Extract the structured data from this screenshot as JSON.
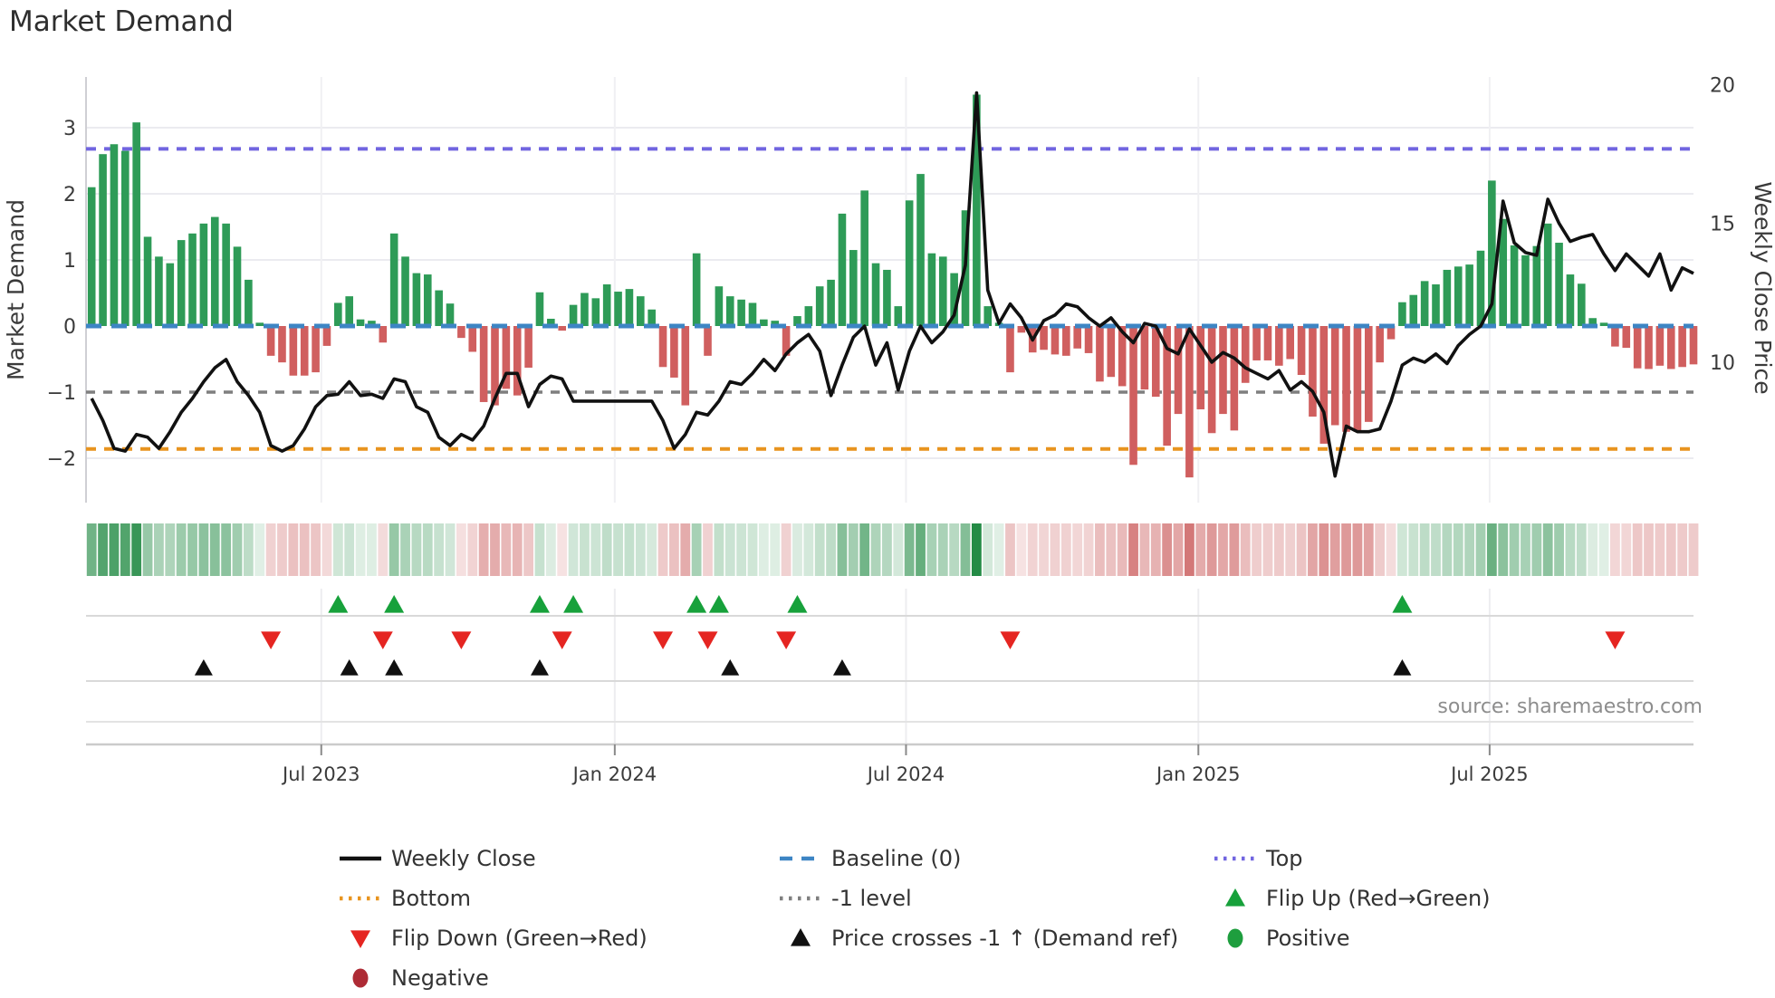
{
  "header": {
    "title": "Market Demand"
  },
  "source_note": "source: sharemaestro.com",
  "colors": {
    "bar_positive": "#2e9b57",
    "bar_negative": "#d05f5f",
    "price_line": "#111111",
    "baseline": "#3d85c4",
    "top_level": "#7165e0",
    "bottom_level": "#e8941f",
    "minus_one_level": "#7f7f7f",
    "flip_up": "#17a13b",
    "flip_down": "#e52521",
    "positive_dot": "#1e9e3e",
    "negative_dot": "#ae2b35",
    "heat_pos_rgb": "35,139,69",
    "heat_neg_rgb": "193,63,63",
    "grid": "#ebebf0",
    "panel_line": "#d9d9d9",
    "tick_text": "#3b3b3b"
  },
  "legend": [
    {
      "id": "weekly-close",
      "label": "Weekly Close",
      "swatch": "solid",
      "color": "#111111",
      "col": 0,
      "row": 0
    },
    {
      "id": "baseline",
      "label": "Baseline (0)",
      "swatch": "dash",
      "color": "#3d85c4",
      "col": 1,
      "row": 0
    },
    {
      "id": "top",
      "label": "Top",
      "swatch": "dot",
      "color": "#7165e0",
      "col": 2,
      "row": 0
    },
    {
      "id": "bottom",
      "label": "Bottom",
      "swatch": "dot",
      "color": "#e8941f",
      "col": 0,
      "row": 1
    },
    {
      "id": "minus1",
      "label": "-1 level",
      "swatch": "dot",
      "color": "#7f7f7f",
      "col": 1,
      "row": 1
    },
    {
      "id": "flip-up",
      "label": "Flip Up (Red→Green)",
      "swatch": "tri-up",
      "color": "#17a13b",
      "col": 2,
      "row": 1
    },
    {
      "id": "flip-down",
      "label": "Flip Down (Green→Red)",
      "swatch": "tri-down",
      "color": "#e52521",
      "col": 0,
      "row": 2
    },
    {
      "id": "price-cross",
      "label": "Price crosses -1 ↑ (Demand ref)",
      "swatch": "tri-up",
      "color": "#111111",
      "col": 1,
      "row": 2
    },
    {
      "id": "positive",
      "label": "Positive",
      "swatch": "circle",
      "color": "#1e9e3e",
      "col": 2,
      "row": 2
    },
    {
      "id": "negative",
      "label": "Negative",
      "swatch": "circle",
      "color": "#ae2b35",
      "col": 0,
      "row": 3
    }
  ],
  "chart_data": {
    "type": "combo",
    "title": "Market Demand",
    "x_tick_labels": [
      "Jul 2023",
      "Jan 2024",
      "Jul 2024",
      "Jan 2025",
      "Jul 2025"
    ],
    "x_tick_weeks": [
      20.5,
      46.7,
      72.7,
      98.8,
      124.8
    ],
    "weeks": 144,
    "y_left": {
      "label": "Market Demand",
      "ticks": [
        3,
        2,
        1,
        0,
        -1,
        -2
      ],
      "lim": [
        -2.67,
        3.77
      ]
    },
    "y_right": {
      "label": "Weekly Close Price",
      "ticks": [
        20,
        15,
        10
      ],
      "lim": [
        4.95,
        20.35
      ]
    },
    "levels": {
      "baseline": 0,
      "top": 2.68,
      "bottom": -1.86,
      "minus_one": -1
    },
    "series": [
      {
        "name": "Market Demand",
        "type": "bar",
        "values": [
          2.1,
          2.6,
          2.75,
          2.65,
          3.08,
          1.35,
          1.05,
          0.95,
          1.3,
          1.4,
          1.55,
          1.65,
          1.55,
          1.2,
          0.7,
          0.05,
          -0.45,
          -0.55,
          -0.75,
          -0.75,
          -0.7,
          -0.3,
          0.35,
          0.45,
          0.1,
          0.08,
          -0.25,
          1.4,
          1.05,
          0.8,
          0.78,
          0.54,
          0.34,
          -0.18,
          -0.39,
          -1.15,
          -1.2,
          -0.95,
          -1.05,
          -0.63,
          0.51,
          0.11,
          -0.07,
          0.32,
          0.5,
          0.42,
          0.63,
          0.52,
          0.56,
          0.45,
          0.25,
          -0.62,
          -0.78,
          -1.2,
          1.1,
          -0.45,
          0.6,
          0.45,
          0.4,
          0.35,
          0.1,
          0.08,
          -0.45,
          0.15,
          0.3,
          0.6,
          0.7,
          1.7,
          1.15,
          2.05,
          0.95,
          0.85,
          0.3,
          1.9,
          2.3,
          1.1,
          1.05,
          0.8,
          1.75,
          3.5,
          0.3,
          0.05,
          -0.7,
          -0.1,
          -0.4,
          -0.36,
          -0.43,
          -0.45,
          -0.34,
          -0.41,
          -0.84,
          -0.77,
          -0.91,
          -2.1,
          -0.96,
          -1.07,
          -1.81,
          -1.33,
          -2.29,
          -1.26,
          -1.62,
          -1.33,
          -1.58,
          -0.86,
          -0.52,
          -0.52,
          -0.6,
          -0.5,
          -0.74,
          -1.37,
          -1.78,
          -1.5,
          -1.6,
          -1.6,
          -1.45,
          -0.55,
          -0.2,
          0.36,
          0.47,
          0.68,
          0.63,
          0.85,
          0.9,
          0.93,
          1.14,
          2.2,
          1.62,
          1.22,
          1.07,
          1.21,
          1.55,
          1.26,
          0.78,
          0.64,
          0.12,
          0.05,
          -0.31,
          -0.33,
          -0.64,
          -0.65,
          -0.6,
          -0.65,
          -0.62,
          -0.58
        ]
      },
      {
        "name": "Weekly Close",
        "type": "line",
        "values": [
          8.7,
          7.9,
          6.9,
          6.8,
          7.4,
          7.3,
          6.9,
          7.5,
          8.2,
          8.7,
          9.3,
          9.8,
          10.1,
          9.3,
          8.8,
          8.2,
          7.0,
          6.8,
          7.0,
          7.6,
          8.4,
          8.8,
          8.85,
          9.3,
          8.8,
          8.85,
          8.7,
          9.4,
          9.3,
          8.4,
          8.2,
          7.3,
          7.0,
          7.4,
          7.2,
          7.7,
          8.7,
          9.6,
          9.6,
          8.4,
          9.2,
          9.5,
          9.4,
          8.6,
          8.6,
          8.6,
          8.6,
          8.6,
          8.6,
          8.6,
          8.6,
          7.9,
          6.9,
          7.4,
          8.2,
          8.1,
          8.6,
          9.3,
          9.2,
          9.6,
          10.1,
          9.7,
          10.3,
          10.7,
          11.0,
          10.4,
          8.8,
          9.9,
          10.9,
          11.3,
          9.9,
          10.7,
          9.0,
          10.4,
          11.3,
          10.7,
          11.1,
          11.7,
          13.5,
          19.7,
          12.6,
          11.4,
          12.1,
          11.6,
          10.8,
          11.5,
          11.7,
          12.1,
          12.0,
          11.6,
          11.3,
          11.6,
          11.1,
          10.7,
          11.4,
          11.3,
          10.5,
          10.3,
          11.2,
          10.6,
          10.0,
          10.35,
          10.15,
          9.8,
          9.6,
          9.4,
          9.7,
          9.0,
          9.3,
          8.95,
          8.2,
          5.9,
          7.7,
          7.5,
          7.5,
          7.6,
          8.6,
          9.9,
          10.15,
          10.0,
          10.3,
          9.95,
          10.6,
          11.0,
          11.3,
          12.1,
          15.8,
          14.3,
          13.95,
          13.85,
          15.87,
          15.0,
          14.35,
          14.5,
          14.6,
          13.9,
          13.3,
          13.9,
          13.5,
          13.1,
          13.9,
          12.6,
          13.4,
          13.2
        ]
      }
    ],
    "markers": {
      "flip_up_weeks": [
        22,
        27,
        40,
        43,
        54,
        56,
        63,
        117
      ],
      "flip_down_weeks": [
        16,
        26,
        33,
        42,
        51,
        55,
        62,
        82,
        136
      ],
      "price_cross_weeks": [
        10,
        23,
        27,
        40,
        57,
        67,
        117
      ]
    },
    "heatmap_note": "strip cells = weekly demand sign (green/red), intensity = |value|",
    "legend_position": "bottom",
    "grid": true
  }
}
